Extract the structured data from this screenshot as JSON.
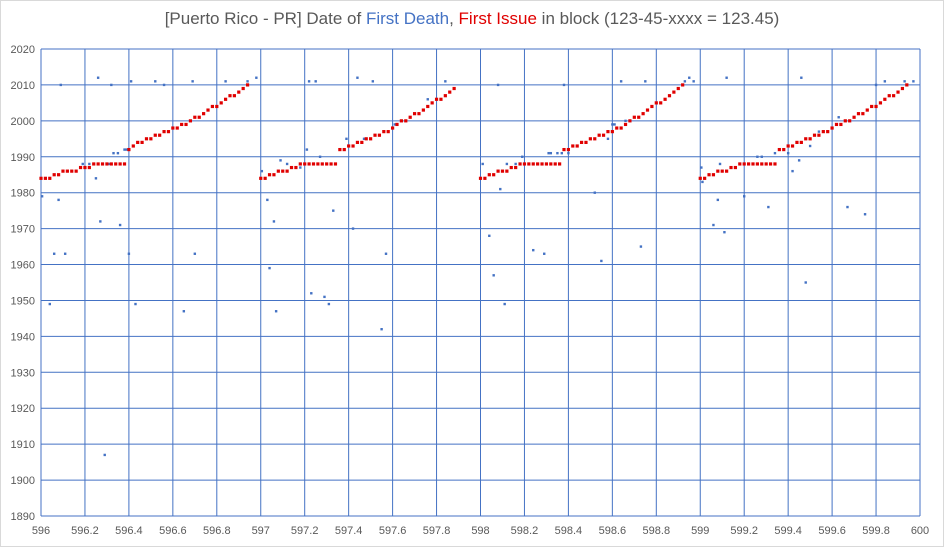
{
  "title": {
    "prefix": "[Puerto Rico - PR] Date of ",
    "series1": "First Death",
    "sep": ", ",
    "series2": "First Issue",
    "suffix": " in block (123-45-xxxx = 123.45)"
  },
  "chart_data": {
    "type": "scatter",
    "title": "[Puerto Rico - PR] Date of First Death, First Issue in block (123-45-xxxx = 123.45)",
    "xlim": [
      596,
      600
    ],
    "ylim": [
      1890,
      2020
    ],
    "x_ticks": [
      "596",
      "596.2",
      "596.4",
      "596.6",
      "596.8",
      "597",
      "597.2",
      "597.4",
      "597.6",
      "597.8",
      "598",
      "598.2",
      "598.4",
      "598.6",
      "598.8",
      "599",
      "599.2",
      "599.4",
      "599.6",
      "599.8",
      "600"
    ],
    "y_ticks": [
      "1890",
      "1900",
      "1910",
      "1920",
      "1930",
      "1940",
      "1950",
      "1960",
      "1970",
      "1980",
      "1990",
      "2000",
      "2010",
      "2020"
    ],
    "grid": true,
    "legend": "none",
    "series": [
      {
        "name": "First Death",
        "color": "#4472c4",
        "points": [
          [
            596.005,
            1979
          ],
          [
            596.04,
            1949
          ],
          [
            596.06,
            1963
          ],
          [
            596.08,
            1978
          ],
          [
            596.09,
            2010
          ],
          [
            596.11,
            1963
          ],
          [
            596.19,
            1988
          ],
          [
            596.22,
            1988
          ],
          [
            596.25,
            1984
          ],
          [
            596.26,
            2012
          ],
          [
            596.27,
            1972
          ],
          [
            596.29,
            1907
          ],
          [
            596.31,
            1988
          ],
          [
            596.32,
            2010
          ],
          [
            596.33,
            1991
          ],
          [
            596.35,
            1991
          ],
          [
            596.36,
            1971
          ],
          [
            596.38,
            1992
          ],
          [
            596.39,
            1992
          ],
          [
            596.4,
            1963
          ],
          [
            596.41,
            2011
          ],
          [
            596.43,
            1949
          ],
          [
            596.52,
            2011
          ],
          [
            596.56,
            2010
          ],
          [
            596.65,
            1947
          ],
          [
            596.69,
            2011
          ],
          [
            596.7,
            1963
          ],
          [
            596.84,
            2011
          ],
          [
            596.94,
            2011
          ],
          [
            596.98,
            2012
          ],
          [
            597.005,
            1986
          ],
          [
            597.03,
            1978
          ],
          [
            597.04,
            1959
          ],
          [
            597.06,
            1972
          ],
          [
            597.07,
            1947
          ],
          [
            597.09,
            1989
          ],
          [
            597.12,
            1988
          ],
          [
            597.18,
            1987
          ],
          [
            597.21,
            1992
          ],
          [
            597.22,
            2011
          ],
          [
            597.23,
            1952
          ],
          [
            597.25,
            2011
          ],
          [
            597.27,
            1990
          ],
          [
            597.29,
            1951
          ],
          [
            597.31,
            1949
          ],
          [
            597.33,
            1975
          ],
          [
            597.39,
            1995
          ],
          [
            597.42,
            1970
          ],
          [
            597.44,
            2012
          ],
          [
            597.47,
            1995
          ],
          [
            597.48,
            1995
          ],
          [
            597.51,
            2011
          ],
          [
            597.55,
            1942
          ],
          [
            597.57,
            1963
          ],
          [
            597.61,
            1999
          ],
          [
            597.76,
            2006
          ],
          [
            597.84,
            2011
          ],
          [
            598.01,
            1988
          ],
          [
            598.04,
            1968
          ],
          [
            598.06,
            1957
          ],
          [
            598.08,
            2010
          ],
          [
            598.09,
            1981
          ],
          [
            598.11,
            1949
          ],
          [
            598.12,
            1988
          ],
          [
            598.16,
            1988
          ],
          [
            598.19,
            1990
          ],
          [
            598.24,
            1964
          ],
          [
            598.29,
            1963
          ],
          [
            598.31,
            1991
          ],
          [
            598.32,
            1991
          ],
          [
            598.35,
            1991
          ],
          [
            598.37,
            1991
          ],
          [
            598.38,
            2010
          ],
          [
            598.4,
            1991
          ],
          [
            598.52,
            1980
          ],
          [
            598.55,
            1961
          ],
          [
            598.58,
            1995
          ],
          [
            598.6,
            1999
          ],
          [
            598.61,
            1999
          ],
          [
            598.64,
            2011
          ],
          [
            598.66,
            2000
          ],
          [
            598.73,
            1965
          ],
          [
            598.75,
            2011
          ],
          [
            598.93,
            2011
          ],
          [
            598.95,
            2012
          ],
          [
            598.97,
            2011
          ],
          [
            599.005,
            1987
          ],
          [
            599.01,
            1983
          ],
          [
            599.06,
            1971
          ],
          [
            599.08,
            1978
          ],
          [
            599.09,
            1988
          ],
          [
            599.11,
            1969
          ],
          [
            599.12,
            2012
          ],
          [
            599.2,
            1979
          ],
          [
            599.26,
            1990
          ],
          [
            599.28,
            1990
          ],
          [
            599.31,
            1976
          ],
          [
            599.34,
            1991
          ],
          [
            599.4,
            1991
          ],
          [
            599.42,
            1986
          ],
          [
            599.45,
            1989
          ],
          [
            599.46,
            2012
          ],
          [
            599.48,
            1955
          ],
          [
            599.5,
            1993
          ],
          [
            599.54,
            1997
          ],
          [
            599.58,
            1997
          ],
          [
            599.63,
            2001
          ],
          [
            599.67,
            1976
          ],
          [
            599.75,
            1974
          ],
          [
            599.8,
            2010
          ],
          [
            599.84,
            2011
          ],
          [
            599.93,
            2011
          ],
          [
            599.97,
            2011
          ]
        ]
      },
      {
        "name": "First Issue",
        "color": "#e00000",
        "points": [
          [
            596.0,
            1984
          ],
          [
            596.02,
            1984
          ],
          [
            596.04,
            1984
          ],
          [
            596.06,
            1985
          ],
          [
            596.08,
            1985
          ],
          [
            596.1,
            1986
          ],
          [
            596.12,
            1986
          ],
          [
            596.14,
            1986
          ],
          [
            596.16,
            1986
          ],
          [
            596.18,
            1987
          ],
          [
            596.2,
            1987
          ],
          [
            596.22,
            1987
          ],
          [
            596.24,
            1988
          ],
          [
            596.26,
            1988
          ],
          [
            596.28,
            1988
          ],
          [
            596.3,
            1988
          ],
          [
            596.32,
            1988
          ],
          [
            596.34,
            1988
          ],
          [
            596.36,
            1988
          ],
          [
            596.38,
            1988
          ],
          [
            596.4,
            1992
          ],
          [
            596.42,
            1993
          ],
          [
            596.44,
            1994
          ],
          [
            596.46,
            1994
          ],
          [
            596.48,
            1995
          ],
          [
            596.5,
            1995
          ],
          [
            596.52,
            1996
          ],
          [
            596.54,
            1996
          ],
          [
            596.56,
            1997
          ],
          [
            596.58,
            1997
          ],
          [
            596.6,
            1998
          ],
          [
            596.62,
            1998
          ],
          [
            596.64,
            1999
          ],
          [
            596.66,
            1999
          ],
          [
            596.68,
            2000
          ],
          [
            596.7,
            2001
          ],
          [
            596.72,
            2001
          ],
          [
            596.74,
            2002
          ],
          [
            596.76,
            2003
          ],
          [
            596.78,
            2004
          ],
          [
            596.8,
            2004
          ],
          [
            596.82,
            2005
          ],
          [
            596.84,
            2006
          ],
          [
            596.86,
            2007
          ],
          [
            596.88,
            2007
          ],
          [
            596.9,
            2008
          ],
          [
            596.92,
            2009
          ],
          [
            596.94,
            2010
          ],
          [
            597.0,
            1984
          ],
          [
            597.02,
            1984
          ],
          [
            597.04,
            1985
          ],
          [
            597.06,
            1985
          ],
          [
            597.08,
            1986
          ],
          [
            597.1,
            1986
          ],
          [
            597.12,
            1986
          ],
          [
            597.14,
            1987
          ],
          [
            597.16,
            1987
          ],
          [
            597.18,
            1988
          ],
          [
            597.2,
            1988
          ],
          [
            597.22,
            1988
          ],
          [
            597.24,
            1988
          ],
          [
            597.26,
            1988
          ],
          [
            597.28,
            1988
          ],
          [
            597.3,
            1988
          ],
          [
            597.32,
            1988
          ],
          [
            597.34,
            1988
          ],
          [
            597.36,
            1992
          ],
          [
            597.38,
            1992
          ],
          [
            597.4,
            1993
          ],
          [
            597.42,
            1993
          ],
          [
            597.44,
            1994
          ],
          [
            597.46,
            1994
          ],
          [
            597.48,
            1995
          ],
          [
            597.5,
            1995
          ],
          [
            597.52,
            1996
          ],
          [
            597.54,
            1996
          ],
          [
            597.56,
            1997
          ],
          [
            597.58,
            1997
          ],
          [
            597.6,
            1998
          ],
          [
            597.62,
            1999
          ],
          [
            597.64,
            2000
          ],
          [
            597.66,
            2000
          ],
          [
            597.68,
            2001
          ],
          [
            597.7,
            2002
          ],
          [
            597.72,
            2002
          ],
          [
            597.74,
            2003
          ],
          [
            597.76,
            2004
          ],
          [
            597.78,
            2005
          ],
          [
            597.8,
            2006
          ],
          [
            597.82,
            2006
          ],
          [
            597.84,
            2007
          ],
          [
            597.86,
            2008
          ],
          [
            597.88,
            2009
          ],
          [
            598.0,
            1984
          ],
          [
            598.02,
            1984
          ],
          [
            598.04,
            1985
          ],
          [
            598.06,
            1985
          ],
          [
            598.08,
            1986
          ],
          [
            598.1,
            1986
          ],
          [
            598.12,
            1986
          ],
          [
            598.14,
            1987
          ],
          [
            598.16,
            1987
          ],
          [
            598.18,
            1988
          ],
          [
            598.2,
            1988
          ],
          [
            598.22,
            1988
          ],
          [
            598.24,
            1988
          ],
          [
            598.26,
            1988
          ],
          [
            598.28,
            1988
          ],
          [
            598.3,
            1988
          ],
          [
            598.32,
            1988
          ],
          [
            598.34,
            1988
          ],
          [
            598.36,
            1988
          ],
          [
            598.38,
            1992
          ],
          [
            598.4,
            1992
          ],
          [
            598.42,
            1993
          ],
          [
            598.44,
            1993
          ],
          [
            598.46,
            1994
          ],
          [
            598.48,
            1994
          ],
          [
            598.5,
            1995
          ],
          [
            598.52,
            1995
          ],
          [
            598.54,
            1996
          ],
          [
            598.56,
            1996
          ],
          [
            598.58,
            1997
          ],
          [
            598.6,
            1997
          ],
          [
            598.62,
            1998
          ],
          [
            598.64,
            1998
          ],
          [
            598.66,
            1999
          ],
          [
            598.68,
            2000
          ],
          [
            598.7,
            2001
          ],
          [
            598.72,
            2001
          ],
          [
            598.74,
            2002
          ],
          [
            598.76,
            2003
          ],
          [
            598.78,
            2004
          ],
          [
            598.8,
            2005
          ],
          [
            598.82,
            2005
          ],
          [
            598.84,
            2006
          ],
          [
            598.86,
            2007
          ],
          [
            598.88,
            2008
          ],
          [
            598.9,
            2009
          ],
          [
            598.92,
            2010
          ],
          [
            599.0,
            1984
          ],
          [
            599.02,
            1984
          ],
          [
            599.04,
            1985
          ],
          [
            599.06,
            1985
          ],
          [
            599.08,
            1986
          ],
          [
            599.1,
            1986
          ],
          [
            599.12,
            1986
          ],
          [
            599.14,
            1987
          ],
          [
            599.16,
            1987
          ],
          [
            599.18,
            1988
          ],
          [
            599.2,
            1988
          ],
          [
            599.22,
            1988
          ],
          [
            599.24,
            1988
          ],
          [
            599.26,
            1988
          ],
          [
            599.28,
            1988
          ],
          [
            599.3,
            1988
          ],
          [
            599.32,
            1988
          ],
          [
            599.34,
            1988
          ],
          [
            599.36,
            1992
          ],
          [
            599.38,
            1992
          ],
          [
            599.4,
            1993
          ],
          [
            599.42,
            1993
          ],
          [
            599.44,
            1994
          ],
          [
            599.46,
            1994
          ],
          [
            599.48,
            1995
          ],
          [
            599.5,
            1995
          ],
          [
            599.52,
            1996
          ],
          [
            599.54,
            1996
          ],
          [
            599.56,
            1997
          ],
          [
            599.58,
            1997
          ],
          [
            599.6,
            1998
          ],
          [
            599.62,
            1999
          ],
          [
            599.64,
            1999
          ],
          [
            599.66,
            2000
          ],
          [
            599.68,
            2000
          ],
          [
            599.7,
            2001
          ],
          [
            599.72,
            2002
          ],
          [
            599.74,
            2002
          ],
          [
            599.76,
            2003
          ],
          [
            599.78,
            2004
          ],
          [
            599.8,
            2004
          ],
          [
            599.82,
            2005
          ],
          [
            599.84,
            2006
          ],
          [
            599.86,
            2007
          ],
          [
            599.88,
            2007
          ],
          [
            599.9,
            2008
          ],
          [
            599.92,
            2009
          ],
          [
            599.94,
            2010
          ]
        ]
      }
    ]
  }
}
